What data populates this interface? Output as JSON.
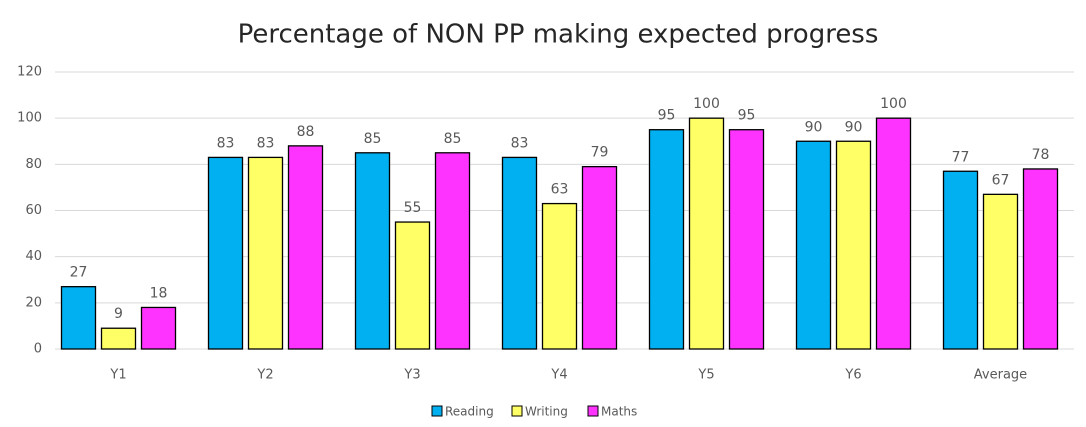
{
  "chart_data": {
    "type": "bar",
    "title": "Percentage of NON PP making expected progress",
    "categories": [
      "Y1",
      "Y2",
      "Y3",
      "Y4",
      "Y5",
      "Y6",
      "Average"
    ],
    "series": [
      {
        "name": "Reading",
        "color": "#00b0f0",
        "values": [
          27,
          83,
          85,
          83,
          95,
          90,
          77
        ]
      },
      {
        "name": "Writing",
        "color": "#ffff66",
        "values": [
          9,
          83,
          55,
          63,
          100,
          90,
          67
        ]
      },
      {
        "name": "Maths",
        "color": "#ff33ff",
        "values": [
          18,
          88,
          85,
          79,
          95,
          100,
          78
        ]
      }
    ],
    "ylim": [
      0,
      120
    ],
    "yticks": [
      0,
      20,
      40,
      60,
      80,
      100,
      120
    ],
    "grid": true,
    "legend": "bottom"
  }
}
